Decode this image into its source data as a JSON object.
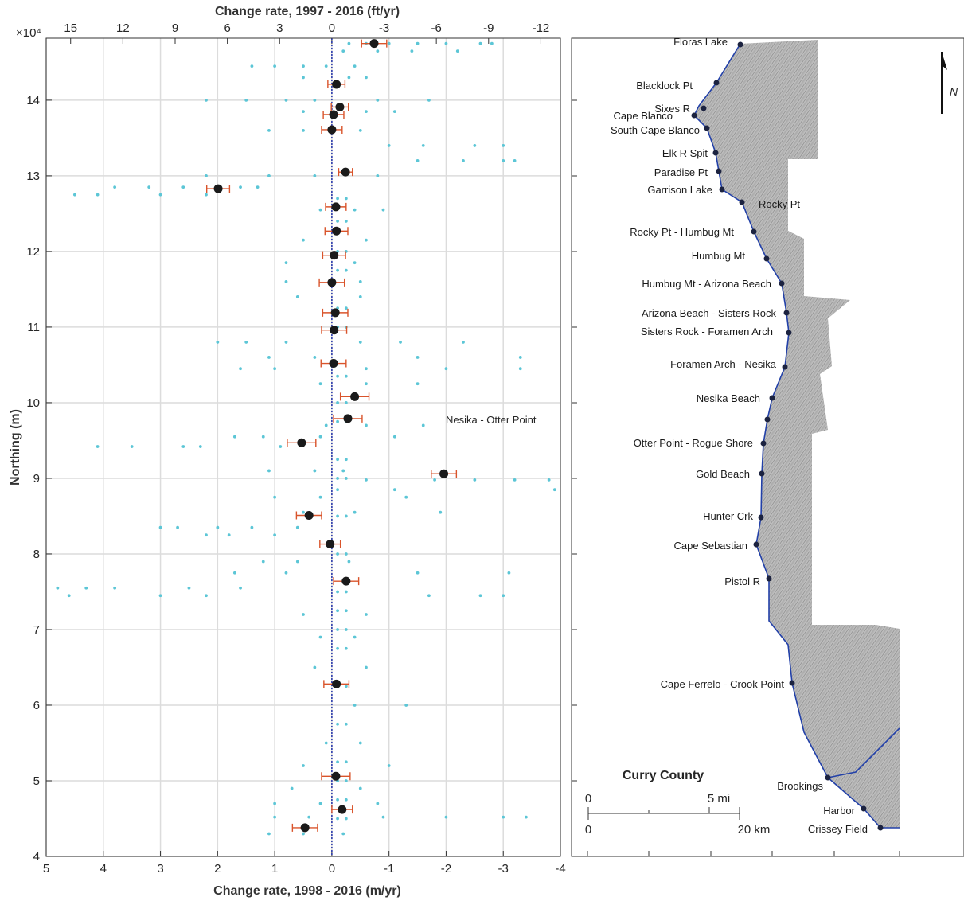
{
  "chart_data": {
    "type": "scatter",
    "title_top": "Change rate, 1997 - 2016 (ft/yr)",
    "xlabel": "Change rate, 1998 - 2016 (m/yr)",
    "ylabel": "Northing (m)",
    "y_multiplier": "×10⁴",
    "xlim": [
      5,
      -4
    ],
    "xticks": [
      5,
      4,
      3,
      2,
      1,
      0,
      -1,
      -2,
      -3,
      -4
    ],
    "x2lim": [
      16.4042,
      -13.1234
    ],
    "x2ticks": [
      15,
      12,
      9,
      6,
      3,
      0,
      -3,
      -6,
      -9,
      -12
    ],
    "ylim": [
      4,
      14.82
    ],
    "yticks": [
      4,
      5,
      6,
      7,
      8,
      9,
      10,
      11,
      12,
      13,
      14
    ],
    "grid": true,
    "point_color": "#5cc6d6",
    "mean_color": "#1a1a1a",
    "error_color": "#d9542b",
    "zero_line_color": "#1f2fa8",
    "annotation": "Nesika - Otter Point",
    "streaks": [
      {
        "y": 14.75,
        "x": [
          -0.3,
          -0.6,
          -1.0,
          -1.5,
          -2.0,
          -2.6,
          -2.8
        ]
      },
      {
        "y": 14.65,
        "x": [
          -0.2,
          -0.8,
          -1.4,
          -2.2
        ]
      },
      {
        "y": 14.45,
        "x": [
          1.4,
          1.0,
          0.5,
          0.1,
          -0.4
        ]
      },
      {
        "y": 14.3,
        "x": [
          0.5,
          -0.3,
          -0.6
        ]
      },
      {
        "y": 14.0,
        "x": [
          2.2,
          1.5,
          0.8,
          0.3,
          -0.8,
          -1.7
        ]
      },
      {
        "y": 13.85,
        "x": [
          0.5,
          -0.6,
          -1.1
        ]
      },
      {
        "y": 13.6,
        "x": [
          1.1,
          0.5,
          -0.5
        ]
      },
      {
        "y": 13.4,
        "x": [
          -1.0,
          -1.6,
          -2.5,
          -3.0
        ]
      },
      {
        "y": 13.2,
        "x": [
          -1.5,
          -2.3,
          -3.0,
          -3.2
        ]
      },
      {
        "y": 13.0,
        "x": [
          2.2,
          1.1,
          0.3,
          -0.8
        ]
      },
      {
        "y": 12.85,
        "x": [
          3.8,
          3.2,
          2.6,
          1.6,
          1.3
        ]
      },
      {
        "y": 12.75,
        "x": [
          4.5,
          4.1,
          3.0,
          2.2
        ]
      },
      {
        "y": 12.55,
        "x": [
          0.2,
          -0.4,
          -0.9
        ]
      },
      {
        "y": 12.15,
        "x": [
          0.5,
          -0.6
        ]
      },
      {
        "y": 11.85,
        "x": [
          0.8,
          -0.4
        ]
      },
      {
        "y": 11.6,
        "x": [
          0.8,
          -0.5
        ]
      },
      {
        "y": 11.4,
        "x": [
          0.6,
          -0.5
        ]
      },
      {
        "y": 10.8,
        "x": [
          2.0,
          1.5,
          0.8,
          -0.5,
          -1.2,
          -2.3
        ]
      },
      {
        "y": 10.6,
        "x": [
          1.1,
          0.3,
          -1.5,
          -3.3
        ]
      },
      {
        "y": 10.45,
        "x": [
          1.6,
          1.0,
          -0.6,
          -2.0,
          -3.3
        ]
      },
      {
        "y": 10.25,
        "x": [
          0.2,
          -0.6,
          -1.5
        ]
      },
      {
        "y": 9.7,
        "x": [
          0.1,
          -0.6,
          -1.6
        ]
      },
      {
        "y": 9.55,
        "x": [
          1.7,
          1.2,
          0.2,
          -1.1
        ]
      },
      {
        "y": 9.42,
        "x": [
          4.1,
          3.5,
          2.6,
          2.3,
          0.9
        ]
      },
      {
        "y": 9.1,
        "x": [
          1.1,
          0.3,
          -0.2
        ]
      },
      {
        "y": 8.98,
        "x": [
          -0.6,
          -1.8,
          -2.5,
          -3.2,
          -3.8
        ]
      },
      {
        "y": 8.85,
        "x": [
          -0.1,
          -1.1,
          -3.9
        ]
      },
      {
        "y": 8.75,
        "x": [
          1.0,
          0.2,
          -1.3
        ]
      },
      {
        "y": 8.55,
        "x": [
          0.5,
          -0.4,
          -1.9
        ]
      },
      {
        "y": 8.35,
        "x": [
          3.0,
          2.7,
          2.0,
          1.4,
          0.6
        ]
      },
      {
        "y": 8.25,
        "x": [
          2.2,
          1.8,
          1.0
        ]
      },
      {
        "y": 7.9,
        "x": [
          1.2,
          0.6,
          -0.3
        ]
      },
      {
        "y": 7.75,
        "x": [
          1.7,
          0.8,
          -1.5,
          -3.1
        ]
      },
      {
        "y": 7.55,
        "x": [
          4.8,
          4.3,
          3.8,
          2.5,
          1.6
        ]
      },
      {
        "y": 7.45,
        "x": [
          4.6,
          3.0,
          2.2,
          -1.7,
          -2.6,
          -3.0
        ]
      },
      {
        "y": 7.2,
        "x": [
          0.5,
          -0.6
        ]
      },
      {
        "y": 6.9,
        "x": [
          0.2,
          -0.4
        ]
      },
      {
        "y": 6.5,
        "x": [
          0.3,
          -0.6
        ]
      },
      {
        "y": 6.0,
        "x": [
          -0.4,
          -1.3
        ]
      },
      {
        "y": 5.5,
        "x": [
          0.1,
          -0.5
        ]
      },
      {
        "y": 5.2,
        "x": [
          0.5,
          -1.0
        ]
      },
      {
        "y": 4.9,
        "x": [
          0.7,
          -0.5
        ]
      },
      {
        "y": 4.7,
        "x": [
          1.0,
          0.2,
          -0.8
        ]
      },
      {
        "y": 4.52,
        "x": [
          1.0,
          0.4,
          -0.9,
          -2.0,
          -3.0,
          -3.4
        ]
      },
      {
        "y": 4.3,
        "x": [
          1.1,
          0.5,
          -0.2
        ]
      },
      {
        "y": 4.5,
        "x": [
          -0.1,
          -0.25
        ]
      },
      {
        "y": 4.75,
        "x": [
          -0.1,
          -0.25
        ]
      },
      {
        "y": 5.0,
        "x": [
          -0.1,
          -0.25
        ]
      },
      {
        "y": 5.25,
        "x": [
          -0.1,
          -0.25
        ]
      },
      {
        "y": 5.75,
        "x": [
          -0.1,
          -0.25
        ]
      },
      {
        "y": 6.25,
        "x": [
          -0.1,
          -0.25
        ]
      },
      {
        "y": 6.75,
        "x": [
          -0.1,
          -0.25
        ]
      },
      {
        "y": 7.0,
        "x": [
          -0.1,
          -0.25
        ]
      },
      {
        "y": 7.25,
        "x": [
          -0.1,
          -0.25
        ]
      },
      {
        "y": 7.5,
        "x": [
          -0.1,
          -0.25
        ]
      },
      {
        "y": 8.0,
        "x": [
          -0.1,
          -0.25
        ]
      },
      {
        "y": 8.5,
        "x": [
          -0.1,
          -0.25
        ]
      },
      {
        "y": 9.0,
        "x": [
          -0.1,
          -0.25
        ]
      },
      {
        "y": 9.25,
        "x": [
          -0.1,
          -0.25
        ]
      },
      {
        "y": 9.75,
        "x": [
          -0.1,
          -0.25
        ]
      },
      {
        "y": 10.0,
        "x": [
          -0.1,
          -0.25
        ]
      },
      {
        "y": 10.35,
        "x": [
          -0.1,
          -0.25
        ]
      },
      {
        "y": 11.0,
        "x": [
          -0.1,
          -0.25
        ]
      },
      {
        "y": 11.25,
        "x": [
          -0.1,
          -0.25
        ]
      },
      {
        "y": 11.75,
        "x": [
          -0.1,
          -0.25
        ]
      },
      {
        "y": 12.0,
        "x": [
          -0.1,
          -0.25
        ]
      },
      {
        "y": 12.4,
        "x": [
          -0.1,
          -0.25
        ]
      },
      {
        "y": 12.7,
        "x": [
          -0.1,
          -0.25
        ]
      }
    ],
    "means": {
      "x": [
        -0.74,
        -0.08,
        -0.14,
        -0.03,
        0.0,
        -0.24,
        1.99,
        -0.07,
        -0.08,
        -0.04,
        0.0,
        -0.06,
        -0.04,
        -0.03,
        -0.4,
        -0.28,
        0.53,
        -1.96,
        0.4,
        0.03,
        -0.25,
        -0.08,
        -0.07,
        -0.18,
        0.47
      ],
      "y": [
        14.75,
        14.21,
        13.91,
        13.81,
        13.61,
        13.05,
        12.83,
        12.59,
        12.27,
        11.95,
        11.59,
        11.19,
        10.96,
        10.52,
        10.08,
        9.79,
        9.47,
        9.06,
        8.51,
        8.13,
        7.64,
        6.28,
        5.06,
        4.62,
        4.38
      ],
      "errors": [
        0.22,
        0.15,
        0.15,
        0.18,
        0.18,
        0.12,
        0.2,
        0.18,
        0.2,
        0.2,
        0.22,
        0.22,
        0.22,
        0.22,
        0.25,
        0.25,
        0.25,
        0.22,
        0.22,
        0.18,
        0.22,
        0.22,
        0.25,
        0.18,
        0.22
      ]
    }
  },
  "map": {
    "title": "Curry County",
    "north": "N",
    "scale": {
      "mi0": "0",
      "mi": "5 mi",
      "km0": "0",
      "km": "20 km"
    },
    "places": [
      "Floras Lake",
      "Blacklock Pt",
      "Sixes R",
      "Cape Blanco",
      "South Cape Blanco",
      "Elk R Spit",
      "Paradise Pt",
      "Garrison Lake",
      "Rocky Pt",
      "Rocky Pt - Humbug Mt",
      "Humbug Mt",
      "Humbug Mt - Arizona Beach",
      "Arizona Beach - Sisters Rock",
      "Sisters Rock - Foramen Arch",
      "Foramen Arch - Nesika",
      "Nesika Beach",
      "Otter Point - Rogue Shore",
      "Gold Beach",
      "Hunter Crk",
      "Cape Sebastian",
      "Pistol R",
      "Cape Ferrelo - Crook Point",
      "Brookings",
      "Harbor",
      "Crissey Field"
    ]
  }
}
